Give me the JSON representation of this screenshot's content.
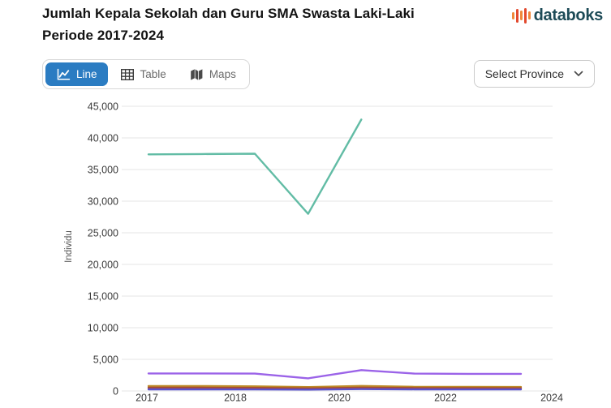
{
  "header": {
    "title_line1": "Jumlah Kepala Sekolah dan Guru SMA Swasta Laki-Laki",
    "title_line2": "Periode 2017-2024",
    "brand": "databoks"
  },
  "toolbar": {
    "tabs": [
      {
        "label": "Line",
        "active": true
      },
      {
        "label": "Table",
        "active": false
      },
      {
        "label": "Maps",
        "active": false
      }
    ],
    "province_selector": "Select Province"
  },
  "colors": {
    "active_tab": "#2b7cc2",
    "brand_text": "#1d4b57",
    "logo_orange": "#f0883a",
    "logo_red": "#e2492e",
    "grid": "#e4e4e4"
  },
  "chart_data": {
    "type": "line",
    "title": "Jumlah Kepala Sekolah dan Guru SMA Swasta Laki-Laki Periode 2017-2024",
    "ylabel": "Individu",
    "x": [
      2017,
      2018,
      2019,
      2020,
      2021,
      2022,
      2023,
      2024
    ],
    "x_tick_labels": [
      "2017",
      "2018",
      "2020",
      "2022",
      "2024"
    ],
    "y_tick_labels": [
      "0",
      "5,000",
      "10,000",
      "15,000",
      "20,000",
      "25,000",
      "30,000",
      "35,000",
      "40,000",
      "45,000"
    ],
    "ylim": [
      0,
      45000
    ],
    "grid": true,
    "legend": "none-visible",
    "series": [
      {
        "name": "teal",
        "color": "#62bca5",
        "values": [
          37400,
          37450,
          37500,
          28000,
          42900,
          null,
          null,
          null
        ]
      },
      {
        "name": "purple",
        "color": "#9b63e8",
        "values": [
          2770,
          2770,
          2750,
          2000,
          3300,
          2750,
          2700,
          2700
        ]
      },
      {
        "name": "gold",
        "color": "#bd8a28",
        "values": [
          770,
          780,
          730,
          620,
          800,
          660,
          640,
          630
        ]
      },
      {
        "name": "red",
        "color": "#a84b32",
        "values": [
          510,
          510,
          490,
          410,
          530,
          460,
          450,
          440
        ]
      },
      {
        "name": "blue",
        "color": "#5a52cf",
        "values": [
          260,
          260,
          250,
          220,
          300,
          255,
          245,
          240
        ]
      }
    ]
  }
}
